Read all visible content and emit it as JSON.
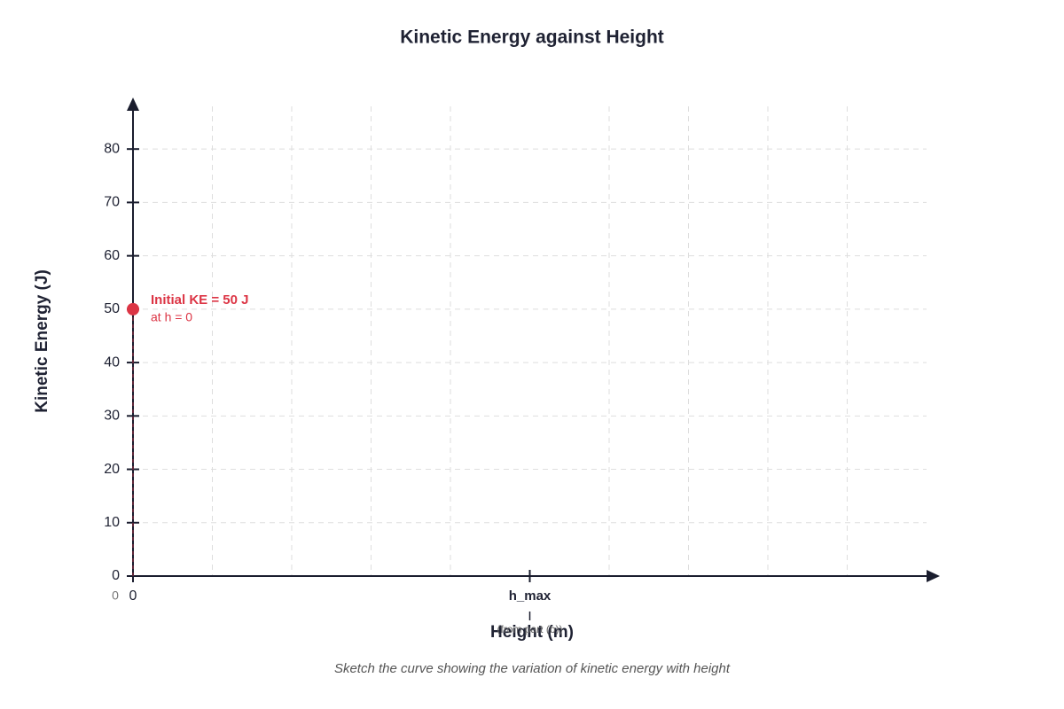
{
  "chart_data": {
    "type": "scatter",
    "title": "Kinetic Energy against Height",
    "x_label": "Height (m)",
    "y_label": "Kinetic Energy (J)",
    "caption": "Sketch the curve showing the variation of kinetic energy with height",
    "x": [
      0
    ],
    "values": [
      50
    ],
    "color": "#dc3545",
    "annotation": {
      "title": "Initial KE = 50 J",
      "subtitle": "at h = 0"
    },
    "xlim": [
      0,
      2
    ],
    "xticks": [
      0,
      {
        "value": 1,
        "label": "h_max"
      }
    ],
    "xtick_note": "(from part (b))",
    "origin_label": "0",
    "xgrid": [
      0.2,
      0.4,
      0.6,
      0.8,
      1.2,
      1.4,
      1.6,
      1.8
    ],
    "ylim": [
      0,
      88
    ],
    "yticks": [
      0,
      10,
      20,
      30,
      40,
      50,
      60,
      70,
      80
    ],
    "grid": true
  }
}
